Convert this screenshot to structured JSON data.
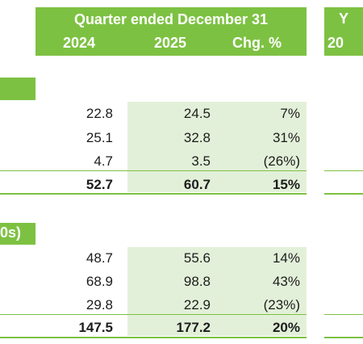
{
  "header": {
    "title": "Quarter ended December 31",
    "col_2024": "2024",
    "col_2025": "2025",
    "col_chg": "Chg. %",
    "right_top": "Y",
    "right_bottom": "20"
  },
  "section2_label": "0s)",
  "section1": {
    "rows": [
      {
        "v2024": "22.8",
        "v2025": "24.5",
        "chg": "7%"
      },
      {
        "v2024": "25.1",
        "v2025": "32.8",
        "chg": "31%"
      },
      {
        "v2024": "4.7",
        "v2025": "3.5",
        "chg": "(26%)"
      }
    ],
    "total": {
      "v2024": "52.7",
      "v2025": "60.7",
      "chg": "15%"
    }
  },
  "section2": {
    "rows": [
      {
        "v2024": "48.7",
        "v2025": "55.6",
        "chg": "14%"
      },
      {
        "v2024": "68.9",
        "v2025": "98.8",
        "chg": "43%"
      },
      {
        "v2024": "29.8",
        "v2025": "22.9",
        "chg": "(23%)"
      }
    ],
    "total": {
      "v2024": "147.5",
      "v2025": "177.2",
      "chg": "20%"
    }
  },
  "colors": {
    "accent": "#7dc142",
    "shade": "#e3f0d9"
  }
}
